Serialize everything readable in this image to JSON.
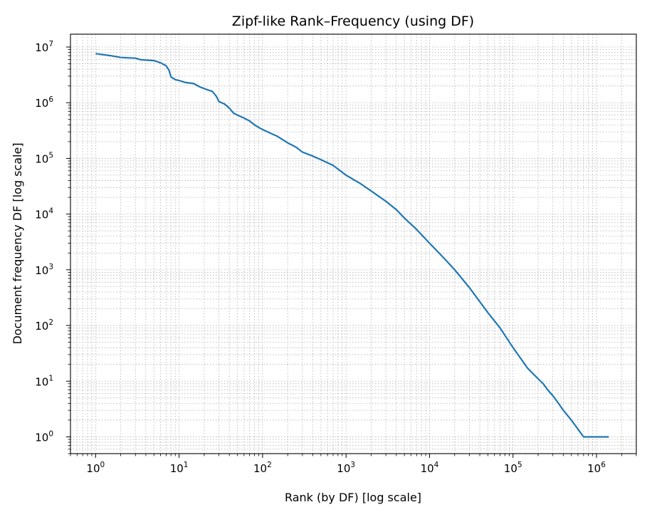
{
  "chart_data": {
    "type": "line",
    "title": "Zipf-like Rank–Frequency (using DF)",
    "xlabel": "Rank (by DF) [log scale]",
    "ylabel": "Document frequency DF [log scale]",
    "xscale": "log",
    "yscale": "log",
    "xlim": [
      0.5,
      3000000
    ],
    "ylim": [
      0.5,
      17000000
    ],
    "x_ticks": [
      {
        "base": "10",
        "exp": "0",
        "value": 1
      },
      {
        "base": "10",
        "exp": "1",
        "value": 10
      },
      {
        "base": "10",
        "exp": "2",
        "value": 100
      },
      {
        "base": "10",
        "exp": "3",
        "value": 1000
      },
      {
        "base": "10",
        "exp": "4",
        "value": 10000
      },
      {
        "base": "10",
        "exp": "5",
        "value": 100000
      },
      {
        "base": "10",
        "exp": "6",
        "value": 1000000
      }
    ],
    "y_ticks": [
      {
        "base": "10",
        "exp": "0",
        "value": 1
      },
      {
        "base": "10",
        "exp": "1",
        "value": 10
      },
      {
        "base": "10",
        "exp": "2",
        "value": 100
      },
      {
        "base": "10",
        "exp": "3",
        "value": 1000
      },
      {
        "base": "10",
        "exp": "4",
        "value": 10000
      },
      {
        "base": "10",
        "exp": "5",
        "value": 100000
      },
      {
        "base": "10",
        "exp": "6",
        "value": 1000000
      },
      {
        "base": "10",
        "exp": "7",
        "value": 10000000
      }
    ],
    "grid": "major and minor, dotted",
    "series": [
      {
        "color": "#1f77b4",
        "points": [
          [
            1,
            7600000
          ],
          [
            1.5,
            7000000
          ],
          [
            2,
            6500000
          ],
          [
            3,
            6300000
          ],
          [
            3.5,
            5900000
          ],
          [
            5,
            5700000
          ],
          [
            6,
            5200000
          ],
          [
            7,
            4600000
          ],
          [
            7.6,
            3800000
          ],
          [
            8,
            2900000
          ],
          [
            9,
            2600000
          ],
          [
            10,
            2500000
          ],
          [
            12,
            2300000
          ],
          [
            15,
            2200000
          ],
          [
            18,
            1900000
          ],
          [
            22,
            1700000
          ],
          [
            25,
            1600000
          ],
          [
            28,
            1300000
          ],
          [
            30,
            1050000
          ],
          [
            35,
            950000
          ],
          [
            40,
            800000
          ],
          [
            45,
            650000
          ],
          [
            50,
            600000
          ],
          [
            60,
            530000
          ],
          [
            70,
            470000
          ],
          [
            80,
            400000
          ],
          [
            90,
            360000
          ],
          [
            100,
            330000
          ],
          [
            120,
            290000
          ],
          [
            150,
            250000
          ],
          [
            200,
            190000
          ],
          [
            250,
            160000
          ],
          [
            300,
            130000
          ],
          [
            400,
            110000
          ],
          [
            500,
            95000
          ],
          [
            700,
            75000
          ],
          [
            1000,
            50000
          ],
          [
            1500,
            35000
          ],
          [
            2000,
            26000
          ],
          [
            3000,
            17000
          ],
          [
            4000,
            12000
          ],
          [
            5000,
            8500
          ],
          [
            7000,
            5300
          ],
          [
            10000,
            3000
          ],
          [
            15000,
            1600
          ],
          [
            20000,
            1000
          ],
          [
            30000,
            480
          ],
          [
            50000,
            170
          ],
          [
            70000,
            90
          ],
          [
            100000,
            40
          ],
          [
            150000,
            17
          ],
          [
            200000,
            11
          ],
          [
            230000,
            9
          ],
          [
            260000,
            7
          ],
          [
            300000,
            5.5
          ],
          [
            350000,
            4
          ],
          [
            400000,
            3
          ],
          [
            500000,
            2
          ],
          [
            700000,
            1
          ],
          [
            1400000,
            1
          ]
        ]
      }
    ]
  }
}
